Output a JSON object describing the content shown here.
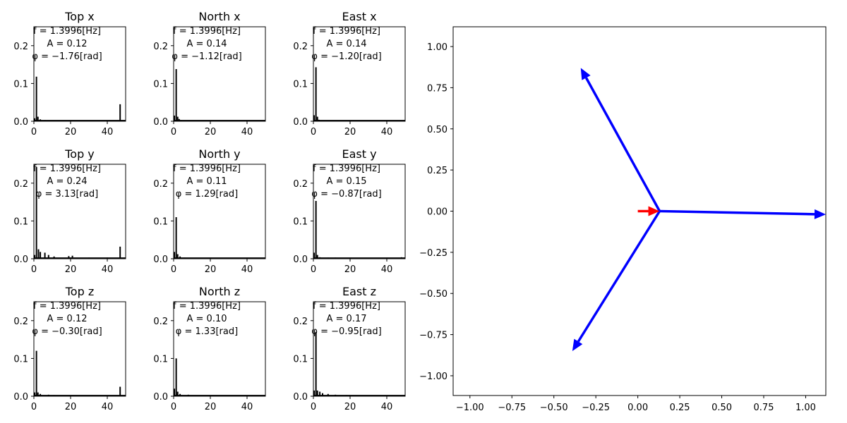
{
  "figure": {
    "background": "#ffffff",
    "line_color": "#000000"
  },
  "chart_data": [
    {
      "type": "bar",
      "title": "Top x",
      "xlim": [
        0,
        50
      ],
      "ylim": [
        0,
        0.25
      ],
      "xticks": [
        0,
        20,
        40
      ],
      "yticks": [
        0.0,
        0.1,
        0.2
      ],
      "annotation": {
        "f_label": "f = 1.3996[Hz]",
        "A_label": "A = 0.12",
        "phi_label": "φ = −1.76[rad]"
      },
      "peaks": [
        {
          "x": 0.4,
          "y": 0.008
        },
        {
          "x": 1.4,
          "y": 0.118
        },
        {
          "x": 2.2,
          "y": 0.012
        },
        {
          "x": 3.5,
          "y": 0.005
        },
        {
          "x": 6,
          "y": 0.003
        },
        {
          "x": 8,
          "y": 0.002
        },
        {
          "x": 19,
          "y": 0.002
        },
        {
          "x": 21,
          "y": 0.002
        },
        {
          "x": 47,
          "y": 0.045
        }
      ]
    },
    {
      "type": "bar",
      "title": "North x",
      "xlim": [
        0,
        50
      ],
      "ylim": [
        0,
        0.25
      ],
      "xticks": [
        0,
        20,
        40
      ],
      "yticks": [
        0.0,
        0.1,
        0.2
      ],
      "annotation": {
        "f_label": "f = 1.3996[Hz]",
        "A_label": "A = 0.14",
        "phi_label": "φ = −1.12[rad]"
      },
      "peaks": [
        {
          "x": 0.4,
          "y": 0.015
        },
        {
          "x": 1.4,
          "y": 0.138
        },
        {
          "x": 2.2,
          "y": 0.012
        },
        {
          "x": 3,
          "y": 0.006
        },
        {
          "x": 4,
          "y": 0.003
        }
      ]
    },
    {
      "type": "bar",
      "title": "East x",
      "xlim": [
        0,
        50
      ],
      "ylim": [
        0,
        0.25
      ],
      "xticks": [
        0,
        20,
        40
      ],
      "yticks": [
        0.0,
        0.1,
        0.2
      ],
      "annotation": {
        "f_label": "f = 1.3996[Hz]",
        "A_label": "A = 0.14",
        "phi_label": "φ = −1.20[rad]"
      },
      "peaks": [
        {
          "x": 0.4,
          "y": 0.016
        },
        {
          "x": 1.4,
          "y": 0.143
        },
        {
          "x": 2.2,
          "y": 0.012
        },
        {
          "x": 3,
          "y": 0.004
        }
      ]
    },
    {
      "type": "bar",
      "title": "Top y",
      "xlim": [
        0,
        50
      ],
      "ylim": [
        0,
        0.25
      ],
      "xticks": [
        0,
        20,
        40
      ],
      "yticks": [
        0.0,
        0.1,
        0.2
      ],
      "annotation": {
        "f_label": "f = 1.3996[Hz]",
        "A_label": "A = 0.24",
        "phi_label": "φ = 3.13[rad]"
      },
      "peaks": [
        {
          "x": 0.4,
          "y": 0.01
        },
        {
          "x": 1.4,
          "y": 0.243
        },
        {
          "x": 2.5,
          "y": 0.025
        },
        {
          "x": 3.5,
          "y": 0.018
        },
        {
          "x": 6,
          "y": 0.016
        },
        {
          "x": 8,
          "y": 0.01
        },
        {
          "x": 11,
          "y": 0.006
        },
        {
          "x": 19,
          "y": 0.007
        },
        {
          "x": 21,
          "y": 0.008
        },
        {
          "x": 30,
          "y": 0.003
        },
        {
          "x": 40,
          "y": 0.003
        },
        {
          "x": 47,
          "y": 0.032
        }
      ]
    },
    {
      "type": "bar",
      "title": "North y",
      "xlim": [
        0,
        50
      ],
      "ylim": [
        0,
        0.25
      ],
      "xticks": [
        0,
        20,
        40
      ],
      "yticks": [
        0.0,
        0.1,
        0.2
      ],
      "annotation": {
        "f_label": "f = 1.3996[Hz]",
        "A_label": "A = 0.11",
        "phi_label": "φ = 1.29[rad]"
      },
      "peaks": [
        {
          "x": 0.4,
          "y": 0.018
        },
        {
          "x": 1.4,
          "y": 0.11
        },
        {
          "x": 2.2,
          "y": 0.012
        },
        {
          "x": 3.5,
          "y": 0.006
        },
        {
          "x": 6,
          "y": 0.003
        }
      ]
    },
    {
      "type": "bar",
      "title": "East y",
      "xlim": [
        0,
        50
      ],
      "ylim": [
        0,
        0.25
      ],
      "xticks": [
        0,
        20,
        40
      ],
      "yticks": [
        0.0,
        0.1,
        0.2
      ],
      "annotation": {
        "f_label": "f = 1.3996[Hz]",
        "A_label": "A = 0.15",
        "phi_label": "φ = −0.87[rad]"
      },
      "peaks": [
        {
          "x": 0.4,
          "y": 0.016
        },
        {
          "x": 1.4,
          "y": 0.153
        },
        {
          "x": 2.2,
          "y": 0.01
        },
        {
          "x": 3.5,
          "y": 0.004
        },
        {
          "x": 8,
          "y": 0.003
        },
        {
          "x": 12,
          "y": 0.003
        },
        {
          "x": 20,
          "y": 0.002
        },
        {
          "x": 48,
          "y": 0.004
        }
      ]
    },
    {
      "type": "bar",
      "title": "Top z",
      "xlim": [
        0,
        50
      ],
      "ylim": [
        0,
        0.25
      ],
      "xticks": [
        0,
        20,
        40
      ],
      "yticks": [
        0.0,
        0.1,
        0.2
      ],
      "annotation": {
        "f_label": "f = 1.3996[Hz]",
        "A_label": "A = 0.12",
        "phi_label": "φ = −0.30[rad]"
      },
      "peaks": [
        {
          "x": 0.4,
          "y": 0.01
        },
        {
          "x": 1.4,
          "y": 0.12
        },
        {
          "x": 2.2,
          "y": 0.01
        },
        {
          "x": 3.5,
          "y": 0.006
        },
        {
          "x": 8,
          "y": 0.004
        },
        {
          "x": 11,
          "y": 0.003
        },
        {
          "x": 29,
          "y": 0.002
        },
        {
          "x": 47,
          "y": 0.025
        }
      ]
    },
    {
      "type": "bar",
      "title": "North z",
      "xlim": [
        0,
        50
      ],
      "ylim": [
        0,
        0.25
      ],
      "xticks": [
        0,
        20,
        40
      ],
      "yticks": [
        0.0,
        0.1,
        0.2
      ],
      "annotation": {
        "f_label": "f = 1.3996[Hz]",
        "A_label": "A = 0.10",
        "phi_label": "φ = 1.33[rad]"
      },
      "peaks": [
        {
          "x": 0.4,
          "y": 0.02
        },
        {
          "x": 1.4,
          "y": 0.1
        },
        {
          "x": 2.2,
          "y": 0.012
        },
        {
          "x": 3.5,
          "y": 0.006
        },
        {
          "x": 8,
          "y": 0.004
        }
      ]
    },
    {
      "type": "bar",
      "title": "East z",
      "xlim": [
        0,
        50
      ],
      "ylim": [
        0,
        0.25
      ],
      "xticks": [
        0,
        20,
        40
      ],
      "yticks": [
        0.0,
        0.1,
        0.2
      ],
      "annotation": {
        "f_label": "f = 1.3996[Hz]",
        "A_label": "A = 0.17",
        "phi_label": "φ = −0.95[rad]"
      },
      "peaks": [
        {
          "x": 0.4,
          "y": 0.015
        },
        {
          "x": 1.4,
          "y": 0.17
        },
        {
          "x": 2.2,
          "y": 0.015
        },
        {
          "x": 3.5,
          "y": 0.012
        },
        {
          "x": 5,
          "y": 0.008
        },
        {
          "x": 8,
          "y": 0.006
        },
        {
          "x": 12,
          "y": 0.004
        },
        {
          "x": 18,
          "y": 0.003
        }
      ]
    },
    {
      "type": "quiver",
      "title": "",
      "xlim": [
        -1.1,
        1.12
      ],
      "ylim": [
        -1.12,
        1.12
      ],
      "xticks": [
        -1.0,
        -0.75,
        -0.5,
        -0.25,
        0.0,
        0.25,
        0.5,
        0.75,
        1.0
      ],
      "yticks": [
        -1.0,
        -0.75,
        -0.5,
        -0.25,
        0.0,
        0.25,
        0.5,
        0.75,
        1.0
      ],
      "tick_labels_x": [
        "−1.00",
        "−0.75",
        "−0.50",
        "−0.25",
        "0.00",
        "0.25",
        "0.50",
        "0.75",
        "1.00"
      ],
      "tick_labels_y": [
        "−1.00",
        "−0.75",
        "−0.50",
        "−0.25",
        "0.00",
        "0.25",
        "0.50",
        "0.75",
        "1.00"
      ],
      "vectors": [
        {
          "x0": 0.13,
          "y0": 0.0,
          "x1": -0.34,
          "y1": 0.87,
          "color": "#0000ff"
        },
        {
          "x0": 0.13,
          "y0": 0.0,
          "x1": -0.39,
          "y1": -0.85,
          "color": "#0000ff"
        },
        {
          "x0": 0.13,
          "y0": 0.0,
          "x1": 1.12,
          "y1": -0.02,
          "color": "#0000ff"
        },
        {
          "x0": 0.0,
          "y0": 0.0,
          "x1": 0.13,
          "y1": 0.0,
          "color": "#ff0000"
        }
      ]
    }
  ]
}
